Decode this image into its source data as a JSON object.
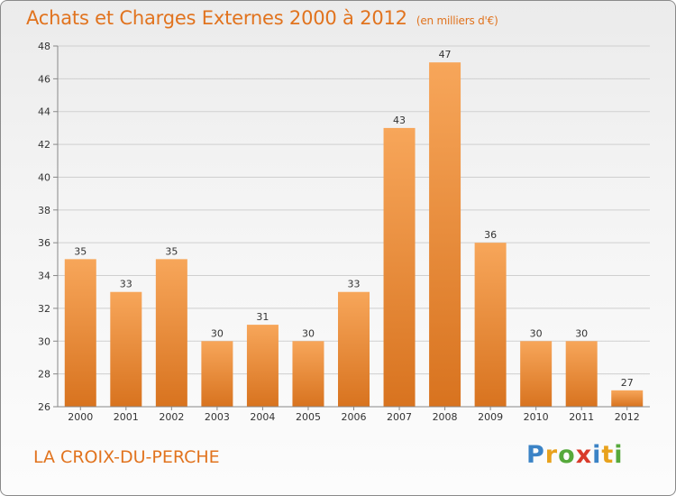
{
  "title": "Achats et Charges Externes 2000 à 2012",
  "unit": "(en milliers d'€)",
  "location": "LA CROIX-DU-PERCHE",
  "brand": {
    "text": "Proxiti",
    "letters": [
      {
        "ch": "P",
        "color": "#3b83c6"
      },
      {
        "ch": "r",
        "color": "#e8a21d"
      },
      {
        "ch": "o",
        "color": "#56a93b"
      },
      {
        "ch": "x",
        "color": "#d93b2b"
      },
      {
        "ch": "i",
        "color": "#3b83c6"
      },
      {
        "ch": "t",
        "color": "#e8a21d"
      },
      {
        "ch": "i",
        "color": "#56a93b"
      }
    ]
  },
  "colors": {
    "bar_light": "#f7a65a",
    "bar_dark": "#d8731f",
    "accent": "#e1731e"
  },
  "chart_data": {
    "type": "bar",
    "title": "Achats et Charges Externes 2000 à 2012",
    "categories": [
      "2000",
      "2001",
      "2002",
      "2003",
      "2004",
      "2005",
      "2006",
      "2007",
      "2008",
      "2009",
      "2010",
      "2011",
      "2012"
    ],
    "values": [
      35,
      33,
      35,
      30,
      31,
      30,
      33,
      43,
      47,
      36,
      30,
      30,
      27
    ],
    "ylim": [
      26,
      48
    ],
    "yticks": [
      26,
      28,
      30,
      32,
      34,
      36,
      38,
      40,
      42,
      44,
      46,
      48
    ],
    "grid": true
  }
}
